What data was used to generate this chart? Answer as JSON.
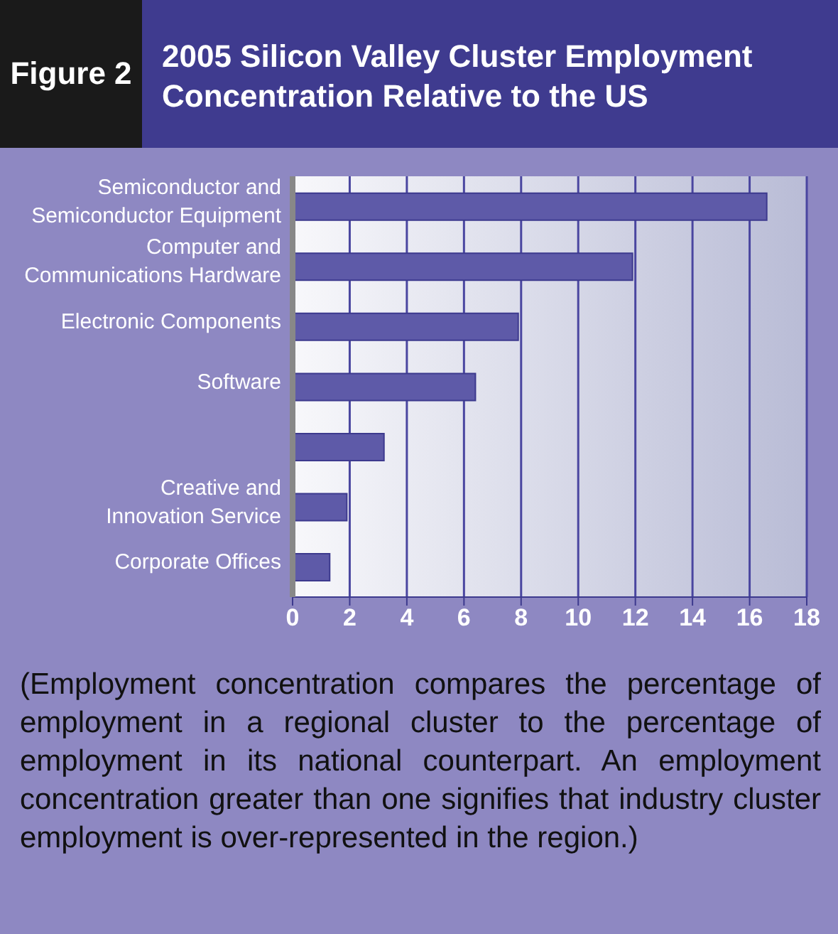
{
  "chart_data": {
    "type": "bar",
    "orientation": "horizontal",
    "title": "2005 Silicon Valley Cluster Employment Concentration Relative to the US",
    "categories": [
      "Semiconductor and Semiconductor Equipment",
      "Computer and Communications Hardware",
      "Electronic Components",
      "Software",
      null,
      "Creative and Innovation Service",
      "Corporate Offices"
    ],
    "values": [
      16.6,
      11.9,
      7.9,
      6.4,
      3.2,
      1.9,
      1.3
    ],
    "color": "#5e5aa8",
    "xlim": [
      0,
      18
    ],
    "xticks": [
      0,
      2,
      4,
      6,
      8,
      10,
      12,
      14,
      16,
      18
    ],
    "grid": "x",
    "annotations": [
      "Figure 2",
      "(Employment concentration compares the percentage of employment in a regional cluster to the percentage of employment in its national counterpart. An employment concentration greater than one signifies that industry cluster employment is over-represented in the region.)"
    ]
  }
}
